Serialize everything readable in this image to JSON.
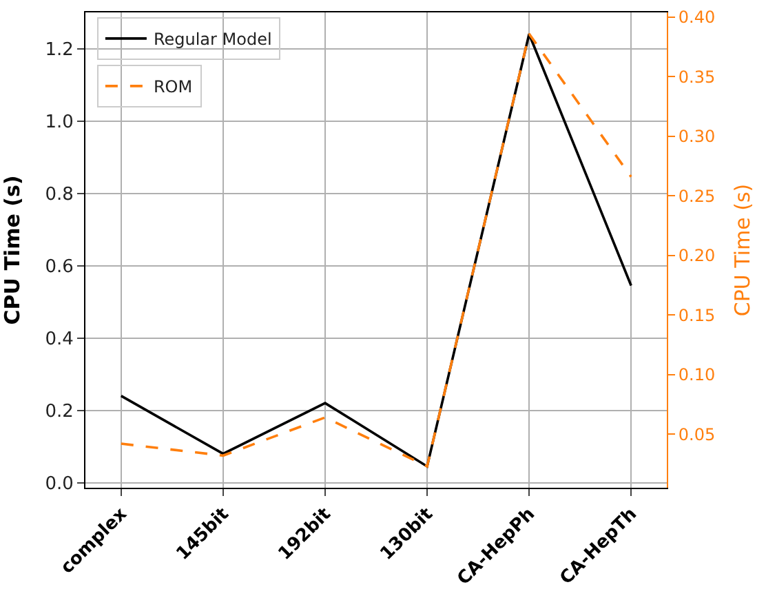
{
  "chart_data": {
    "type": "line",
    "categories": [
      "complex",
      "145bit",
      "192bit",
      "130bit",
      "CA-HepPh",
      "CA-HepTh"
    ],
    "ylabel": "CPU Time (s)",
    "y2label": "CPU Time (s)",
    "series": [
      {
        "name": "Regular Model",
        "color": "#000000",
        "line_style": "solid",
        "values": [
          0.24,
          0.08,
          0.22,
          0.045,
          1.24,
          0.545
        ]
      },
      {
        "name": "ROM",
        "color": "#ff7f0e",
        "line_style": "dashed",
        "axis": "y2",
        "values": [
          0.042,
          0.032,
          0.064,
          0.023,
          0.386,
          0.266
        ]
      }
    ],
    "ylim": [
      -0.014,
      1.3
    ],
    "yticks": [
      {
        "value": 0,
        "label": "0.0"
      },
      0.2,
      0.4,
      0.6,
      0.8,
      {
        "value": 1,
        "label": "1.0"
      },
      1.2
    ],
    "y2lim": [
      0.005,
      0.404
    ],
    "y2ticks": [
      0.05,
      {
        "value": 0.1,
        "label": "0.10"
      },
      0.15,
      {
        "value": 0.2,
        "label": "0.20"
      },
      0.25,
      {
        "value": 0.3,
        "label": "0.30"
      },
      0.35,
      {
        "value": 0.4,
        "label": "0.40"
      }
    ],
    "grid": true,
    "legend": "top left",
    "marker": "none"
  }
}
